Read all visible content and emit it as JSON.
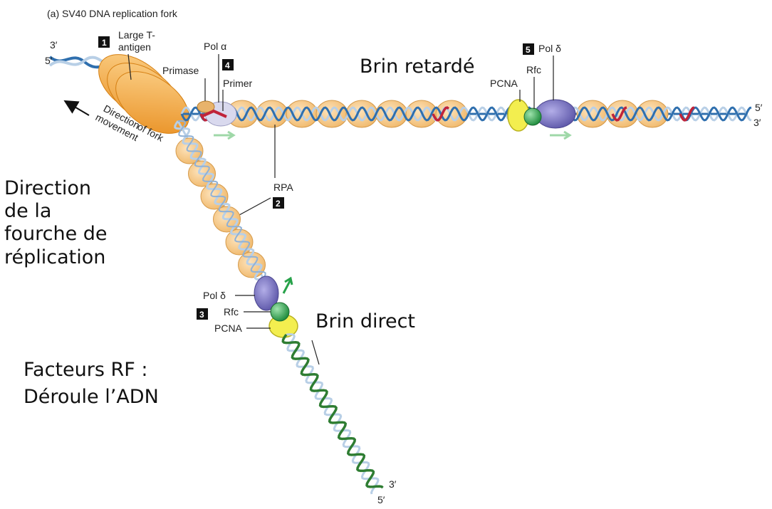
{
  "figure": {
    "title": "(a) SV40 DNA replication fork"
  },
  "labels": {
    "strand_top_left_3": "3′",
    "strand_top_left_5": "5′",
    "strand_right_5": "5′",
    "strand_right_3": "3′",
    "strand_bottom_3": "3′",
    "strand_bottom_5": "5′",
    "large_t_line1": "Large T-",
    "large_t_line2": "antigen",
    "pol_alpha": "Pol α",
    "primase": "Primase",
    "primer": "Primer",
    "pcna_top": "PCNA",
    "rfc_top": "Rfc",
    "pol_delta_top": "Pol δ",
    "rpa": "RPA",
    "direction_line1": "Direction",
    "direction_line2": "of fork",
    "direction_line3": "movement",
    "pol_delta_bottom": "Pol δ",
    "rfc_bottom": "Rfc",
    "pcna_bottom": "PCNA"
  },
  "badges": {
    "b1": "1",
    "b2": "2",
    "b3": "3",
    "b4": "4",
    "b5": "5"
  },
  "annotations": {
    "lagging_strand": "Brin retardé",
    "leading_strand": "Brin direct",
    "fork_dir_1": "Direction",
    "fork_dir_2": "de la",
    "fork_dir_3": "fourche de",
    "fork_dir_4": "réplication",
    "rf_1": "Facteurs RF :",
    "rf_2": "Déroule l’ADN"
  },
  "colors": {
    "template_blue": "#2f6fae",
    "template_light": "#b8cfe6",
    "new_green": "#2e7d32",
    "primer_red": "#c0243a",
    "rpa_orange": "#f6c98a",
    "t_antigen_orange": "#f4a233",
    "pol_delta_purple": "#7b76c4",
    "rfc_green": "#27a24a",
    "pcna_yellow": "#f3ee4f",
    "arrow_light_green": "#9fd8a8"
  }
}
